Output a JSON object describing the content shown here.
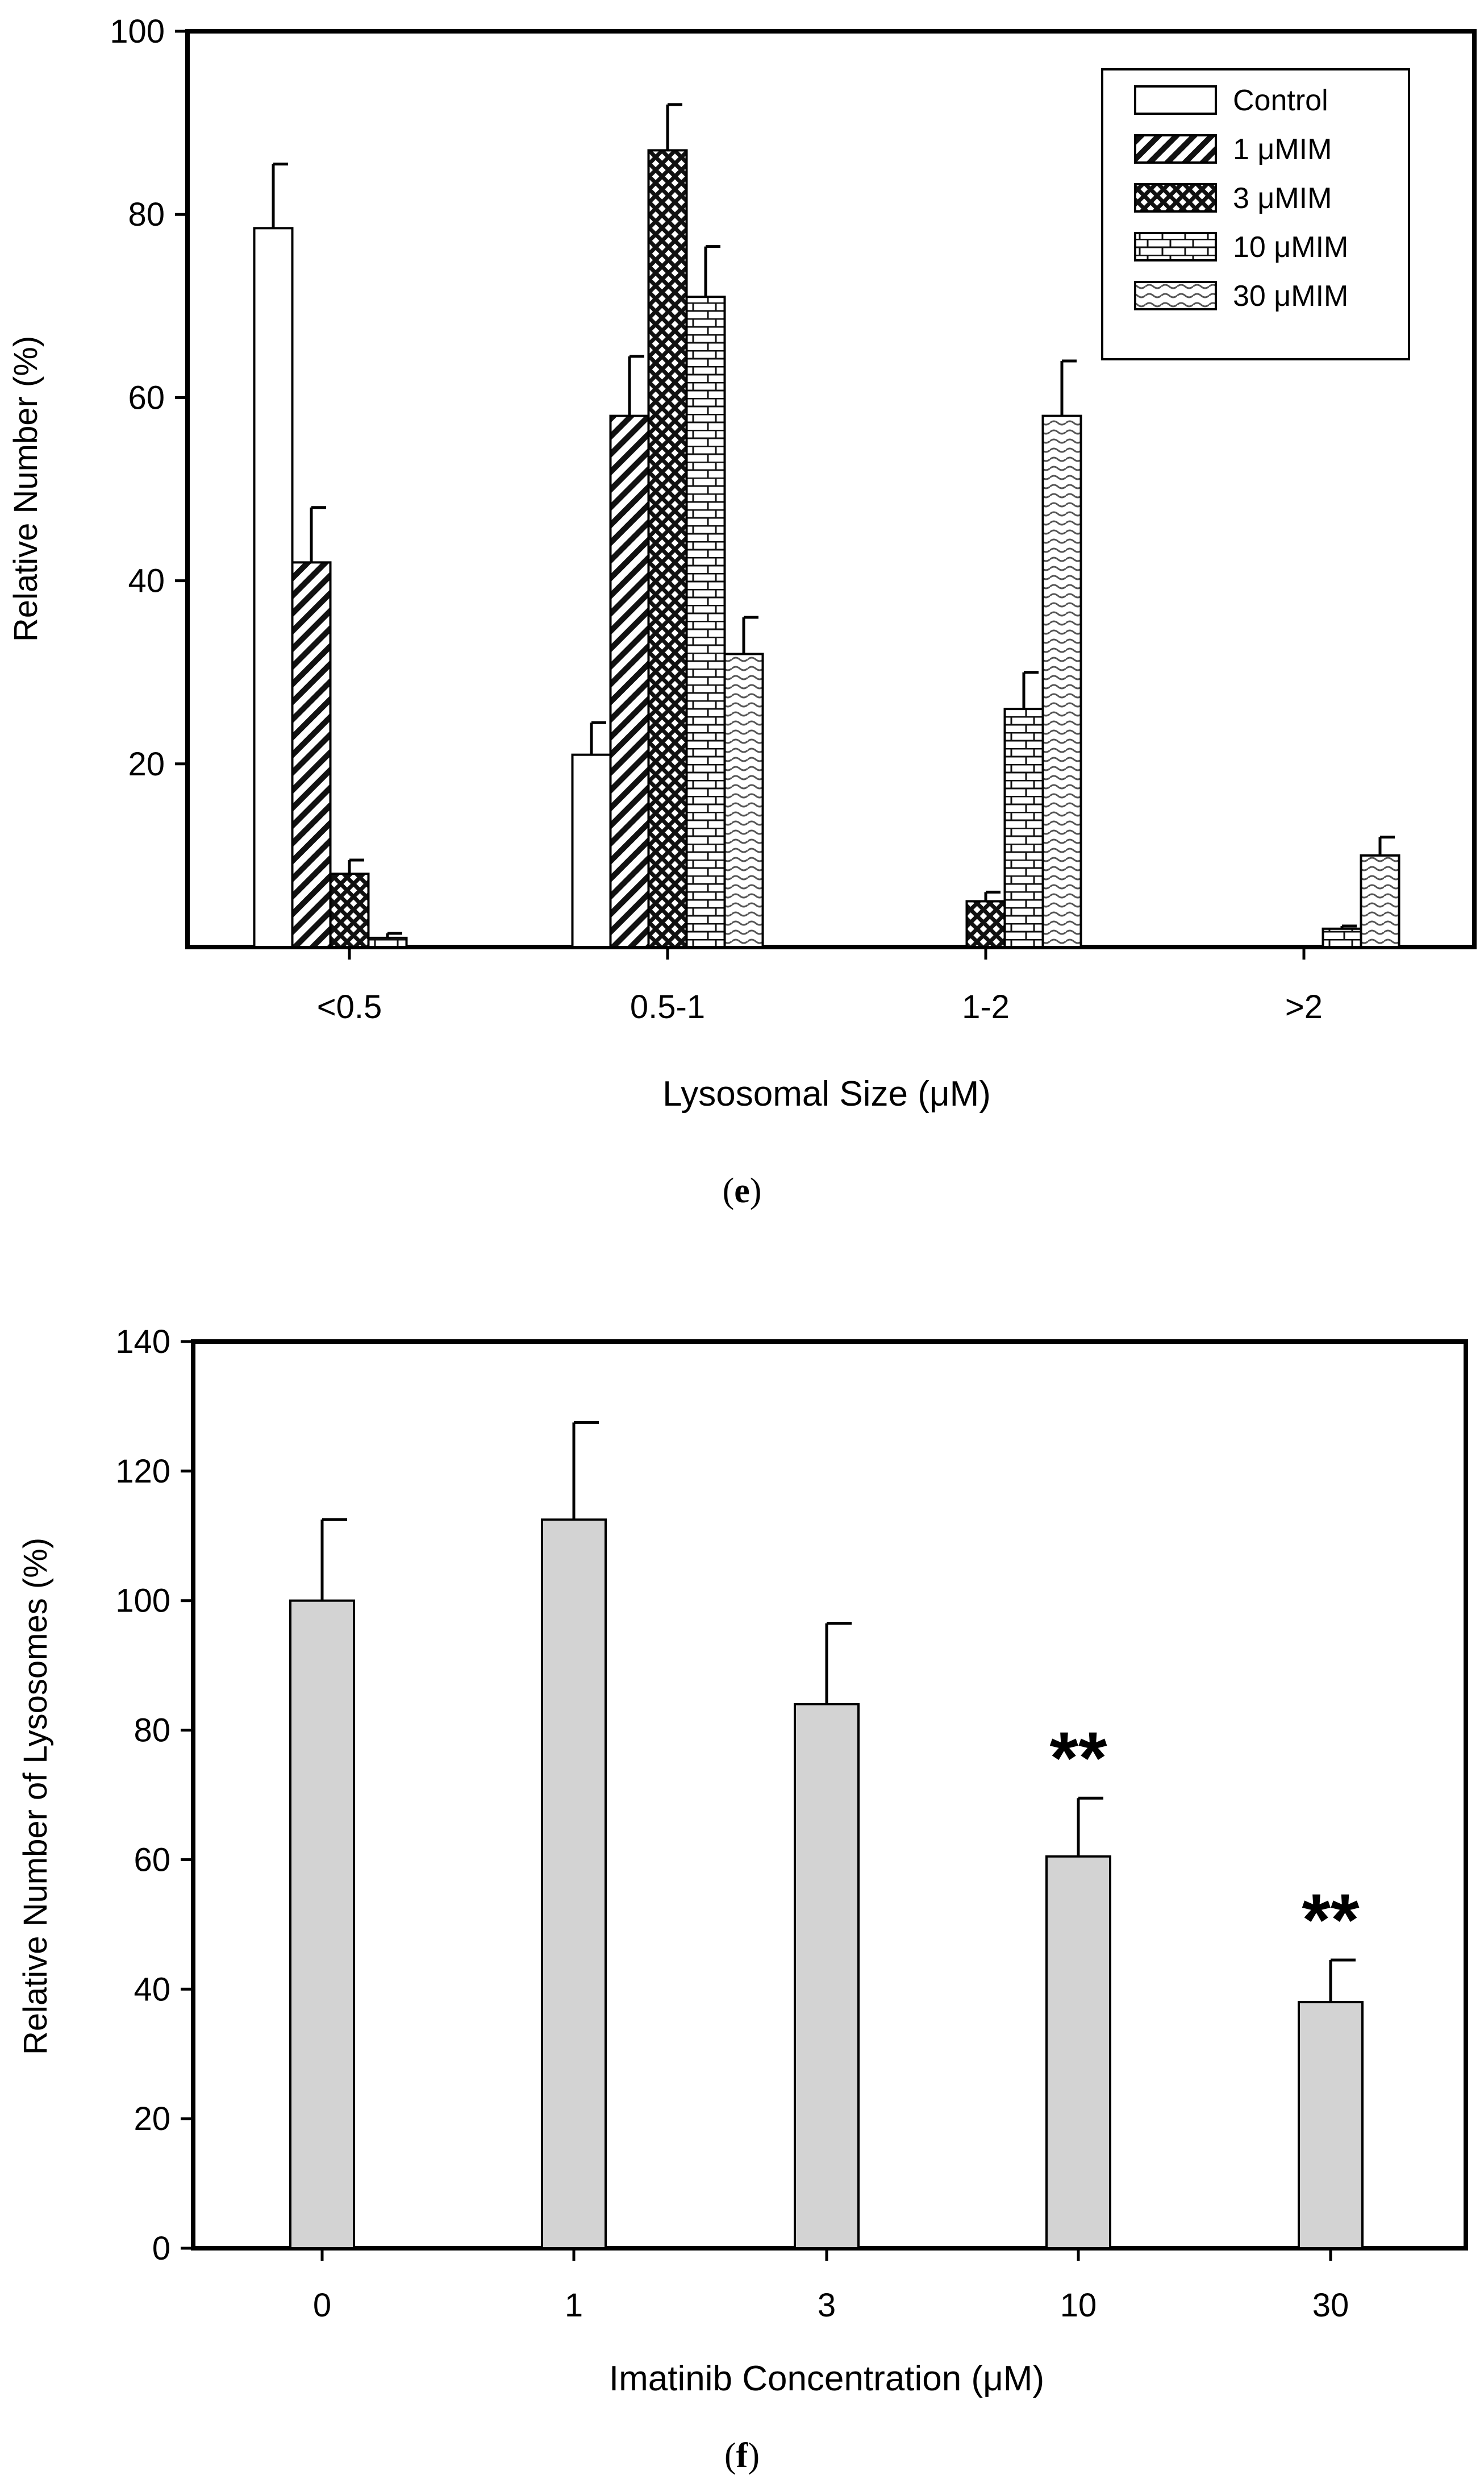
{
  "chart_data": [
    {
      "type": "bar",
      "panel_label": "(e)",
      "panel_label_parts": {
        "open": "(",
        "letter": "e",
        "close": ")"
      },
      "xlabel": "Lysosomal Size (μM)",
      "ylabel": "Relative Number (%)",
      "ylim": [
        0,
        100
      ],
      "yticks": [
        20,
        40,
        60,
        80,
        100
      ],
      "ytick_labels": [
        "20",
        "40",
        "60",
        "80",
        "100"
      ],
      "categories": [
        "<0.5",
        "0.5-1",
        "1-2",
        ">2"
      ],
      "legend_position": "top-right",
      "series": [
        {
          "name": "Control",
          "pattern": "open",
          "values": [
            78.5,
            21,
            null,
            null
          ],
          "errors": [
            7,
            3.5,
            null,
            null
          ]
        },
        {
          "name": "1 μMIM",
          "pattern": "diagonal",
          "values": [
            42,
            58,
            null,
            null
          ],
          "errors": [
            6,
            6.5,
            null,
            null
          ]
        },
        {
          "name": "3 μMIM",
          "pattern": "crosshatch",
          "values": [
            8,
            87,
            5,
            null
          ],
          "errors": [
            1.5,
            5,
            1,
            null
          ]
        },
        {
          "name": "10 μMIM",
          "pattern": "brick",
          "values": [
            1,
            71,
            26,
            2
          ],
          "errors": [
            0.5,
            5.5,
            4,
            0.3
          ]
        },
        {
          "name": "30 μMIM",
          "pattern": "wavy",
          "values": [
            null,
            32,
            58,
            10
          ],
          "errors": [
            null,
            4,
            6,
            2
          ]
        }
      ]
    },
    {
      "type": "bar",
      "panel_label": "(f)",
      "panel_label_parts": {
        "open": "(",
        "letter": "f",
        "close": ")"
      },
      "xlabel": "Imatinib Concentration (μM)",
      "ylabel": "Relative Number of Lysosomes (%)",
      "ylim": [
        0,
        140
      ],
      "yticks": [
        0,
        20,
        40,
        60,
        80,
        100,
        120,
        140
      ],
      "ytick_labels": [
        "0",
        "20",
        "40",
        "60",
        "80",
        "100",
        "120",
        "140"
      ],
      "categories": [
        "0",
        "1",
        "3",
        "10",
        "30"
      ],
      "bar_color": "#d3d3d3",
      "series": [
        {
          "name": "Relative Number of Lysosomes",
          "values": [
            100,
            112.5,
            84,
            60.5,
            38
          ],
          "errors": [
            12.5,
            15,
            12.5,
            9,
            6.5
          ],
          "annotations": [
            "",
            "",
            "",
            "**",
            "**"
          ]
        }
      ]
    }
  ]
}
